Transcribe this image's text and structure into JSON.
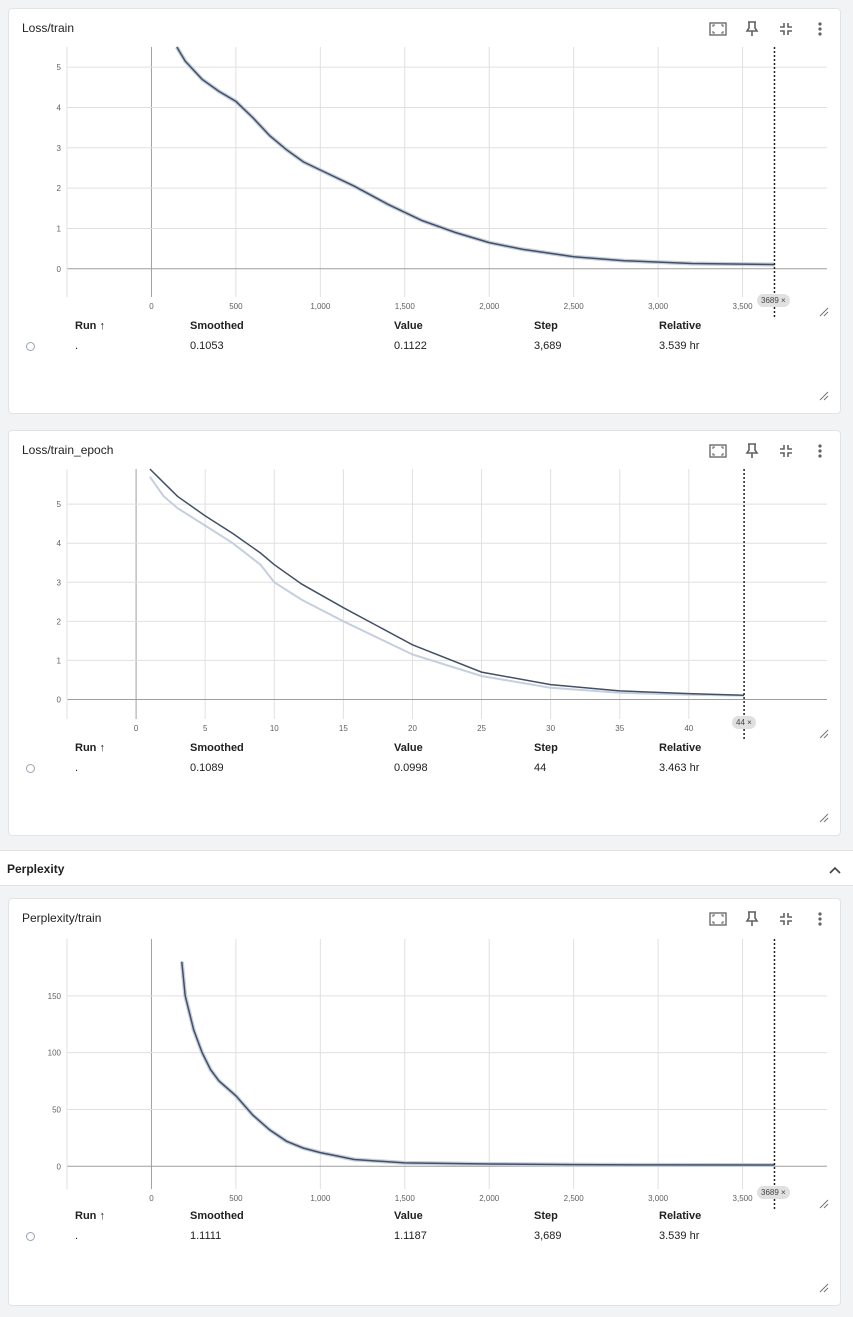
{
  "colors": {
    "smoothed": "#425066",
    "raw": "#c6cfdd",
    "grid": "#e0e0e0",
    "axis": "#9e9e9e"
  },
  "icons": [
    "fit-to-data-icon",
    "pin-icon",
    "collapse-icon",
    "more-vert-icon"
  ],
  "table_header": {
    "run": "Run ↑",
    "smoothed": "Smoothed",
    "value": "Value",
    "step": "Step",
    "relative": "Relative"
  },
  "cards": [
    {
      "title": "Loss/train",
      "run": ".",
      "smoothed": "0.1053",
      "value": "0.1122",
      "step": "3,689",
      "relative": "3.539 hr",
      "cursor_label": "3689 ×"
    },
    {
      "title": "Loss/train_epoch",
      "run": ".",
      "smoothed": "0.1089",
      "value": "0.0998",
      "step": "44",
      "relative": "3.463 hr",
      "cursor_label": "44 ×"
    },
    {
      "title": "Perplexity/train",
      "run": ".",
      "smoothed": "1.1111",
      "value": "1.1187",
      "step": "3,689",
      "relative": "3.539 hr",
      "cursor_label": "3689 ×"
    }
  ],
  "section": {
    "title": "Perplexity"
  },
  "chart_data": [
    {
      "type": "line",
      "title": "Loss/train",
      "xlim": [
        -500,
        4000
      ],
      "ylim": [
        -0.7,
        5.5
      ],
      "x_ticks": [
        0,
        500,
        1000,
        1500,
        2000,
        2500,
        3000,
        3500
      ],
      "x_tick_labels": [
        "0",
        "500",
        "1,000",
        "1,500",
        "2,000",
        "2,500",
        "3,000",
        "3,500"
      ],
      "y_ticks": [
        0,
        1,
        2,
        3,
        4,
        5
      ],
      "cursor_x": 3689,
      "series": [
        {
          "role": "smoothed",
          "x": [
            150,
            200,
            300,
            400,
            500,
            600,
            700,
            800,
            900,
            1000,
            1200,
            1400,
            1600,
            1800,
            2000,
            2200,
            2500,
            2800,
            3200,
            3689
          ],
          "y": [
            5.5,
            5.15,
            4.7,
            4.4,
            4.15,
            3.75,
            3.3,
            2.95,
            2.65,
            2.45,
            2.05,
            1.6,
            1.2,
            0.9,
            0.65,
            0.48,
            0.3,
            0.2,
            0.13,
            0.105
          ]
        }
      ]
    },
    {
      "type": "line",
      "title": "Loss/train_epoch",
      "xlim": [
        -5,
        50
      ],
      "ylim": [
        -0.5,
        5.9
      ],
      "x_ticks": [
        0,
        5,
        10,
        15,
        20,
        25,
        30,
        35,
        40
      ],
      "x_tick_labels": [
        "0",
        "5",
        "10",
        "15",
        "20",
        "25",
        "30",
        "35",
        "40"
      ],
      "y_ticks": [
        0,
        1,
        2,
        3,
        4,
        5
      ],
      "cursor_x": 44,
      "series": [
        {
          "role": "raw",
          "x": [
            1,
            2,
            3,
            5,
            7,
            9,
            10,
            12,
            15,
            20,
            25,
            30,
            35,
            40,
            44
          ],
          "y": [
            5.7,
            5.2,
            4.9,
            4.45,
            4.0,
            3.45,
            3.0,
            2.55,
            2.0,
            1.15,
            0.6,
            0.3,
            0.17,
            0.12,
            0.1
          ]
        },
        {
          "role": "smoothed",
          "x": [
            1,
            2,
            3,
            5,
            7,
            9,
            10,
            12,
            15,
            20,
            25,
            30,
            35,
            40,
            44
          ],
          "y": [
            5.95,
            5.55,
            5.2,
            4.7,
            4.25,
            3.75,
            3.45,
            2.95,
            2.35,
            1.4,
            0.7,
            0.38,
            0.22,
            0.15,
            0.109
          ]
        }
      ]
    },
    {
      "type": "line",
      "title": "Perplexity/train",
      "xlim": [
        -500,
        4000
      ],
      "ylim": [
        -20,
        200
      ],
      "x_ticks": [
        0,
        500,
        1000,
        1500,
        2000,
        2500,
        3000,
        3500
      ],
      "x_tick_labels": [
        "0",
        "500",
        "1,000",
        "1,500",
        "2,000",
        "2,500",
        "3,000",
        "3,500"
      ],
      "y_ticks": [
        0,
        50,
        100,
        150
      ],
      "cursor_x": 3689,
      "series": [
        {
          "role": "smoothed",
          "x": [
            180,
            200,
            250,
            300,
            350,
            400,
            500,
            600,
            700,
            800,
            900,
            1000,
            1100,
            1200,
            1500,
            2000,
            2500,
            3000,
            3689
          ],
          "y": [
            180,
            150,
            120,
            100,
            85,
            75,
            62,
            45,
            32,
            22,
            16,
            12,
            9,
            6,
            3,
            2,
            1.5,
            1.2,
            1.1
          ]
        }
      ]
    }
  ]
}
